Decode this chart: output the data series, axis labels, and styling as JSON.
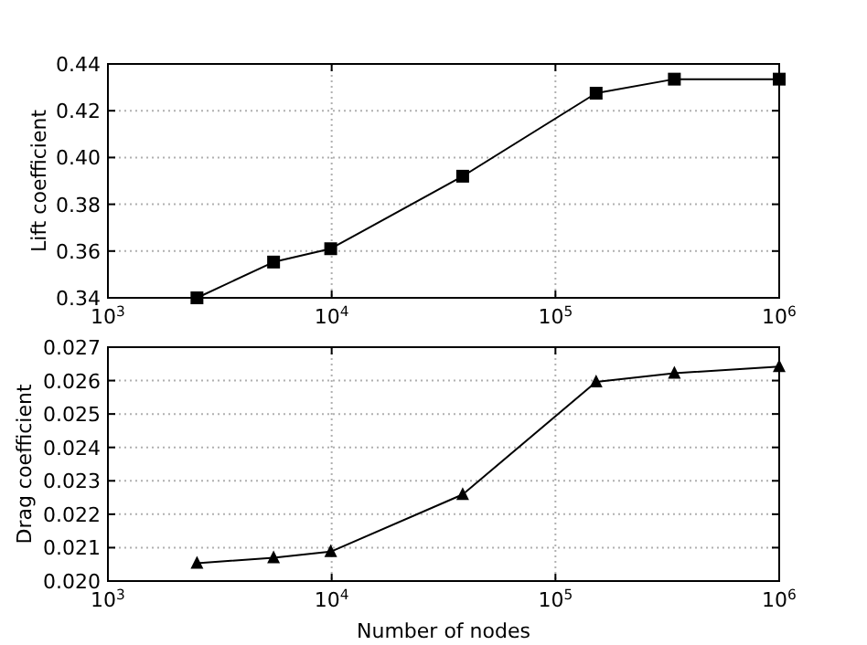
{
  "chart_data": [
    {
      "type": "line",
      "ylabel": "Lift coefficient",
      "log": "x",
      "grid": true,
      "marker": "square",
      "line_style": "solid",
      "xlim": [
        1000,
        1000000
      ],
      "xticks": [
        {
          "value": 1000,
          "label": "10$^{3}$"
        },
        {
          "value": 10000,
          "label": "10$^{4}$"
        },
        {
          "value": 100000,
          "label": "10$^{5}$"
        },
        {
          "value": 1000000,
          "label": "10$^{6}$"
        }
      ],
      "ylim": [
        0.34,
        0.44
      ],
      "yticks": [
        0.34,
        0.36,
        0.38,
        {
          "value": 0.4,
          "label": "0.40"
        },
        0.42,
        0.44
      ],
      "x": [
        2500,
        5500,
        9900,
        38500,
        152000,
        340000,
        1000000
      ],
      "series": [
        {
          "color": "#000000",
          "values": [
            0.34,
            0.3553,
            0.361,
            0.392,
            0.4275,
            0.4335,
            0.4335
          ]
        }
      ]
    },
    {
      "type": "line",
      "xlabel": "Number of nodes",
      "ylabel": "Drag coefficient",
      "log": "x",
      "grid": true,
      "marker": "triangle",
      "line_style": "solid",
      "xlim": [
        1000,
        1000000
      ],
      "xticks": [
        {
          "value": 1000,
          "label": "10$^{3}$"
        },
        {
          "value": 10000,
          "label": "10$^{4}$"
        },
        {
          "value": 100000,
          "label": "10$^{5}$"
        },
        {
          "value": 1000000,
          "label": "10$^{6}$"
        }
      ],
      "ylim": [
        0.02,
        0.027
      ],
      "yticks": [
        {
          "value": 0.02,
          "label": "0.020"
        },
        0.021,
        0.022,
        0.023,
        0.024,
        0.025,
        0.026,
        0.027
      ],
      "x": [
        2500,
        5500,
        9900,
        38500,
        152000,
        340000,
        1000000
      ],
      "series": [
        {
          "color": "#000000",
          "values": [
            0.02053,
            0.0207,
            0.02088,
            0.02259,
            0.02596,
            0.02622,
            0.02642
          ]
        }
      ]
    }
  ]
}
